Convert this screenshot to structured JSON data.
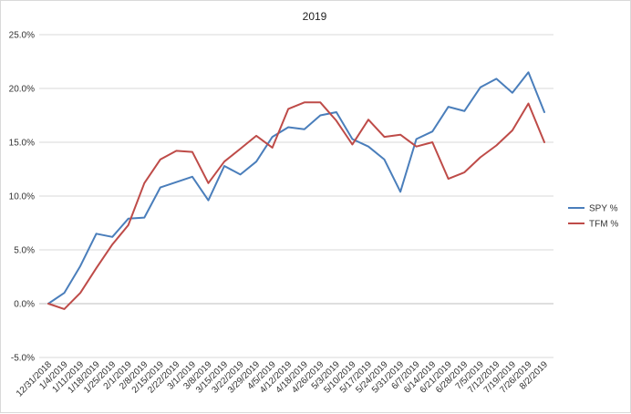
{
  "chart_data": {
    "type": "line",
    "title": "2019",
    "x": [
      "12/31/2018",
      "1/4/2019",
      "1/11/2019",
      "1/18/2019",
      "1/25/2019",
      "2/1/2019",
      "2/8/2019",
      "2/15/2019",
      "2/22/2019",
      "3/1/2019",
      "3/8/2019",
      "3/15/2019",
      "3/22/2019",
      "3/29/2019",
      "4/5/2019",
      "4/12/2019",
      "4/18/2019",
      "4/26/2019",
      "5/3/2019",
      "5/10/2019",
      "5/17/2019",
      "5/24/2019",
      "5/31/2019",
      "6/7/2019",
      "6/14/2019",
      "6/21/2019",
      "6/28/2019",
      "7/5/2019",
      "7/12/2019",
      "7/19/2019",
      "7/26/2019",
      "8/2/2019"
    ],
    "xlabels": [
      "12/31/2018",
      "1/4/2019",
      "1/11/2019",
      "1/18/2019",
      "1/25/2019",
      "2/1/2019",
      "2/8/2019",
      "2/15/2019",
      "2/22/2019",
      "3/1/2019",
      "3/8/2019",
      "3/15/2019",
      "3/22/2019",
      "3/29/2019",
      "4/5/2019",
      "4/12/2019",
      "4/18/2019",
      "4/26/2019",
      "5/3/2019",
      "5/10/2019",
      "5/17/2019",
      "5/24/2019",
      "5/31/2019",
      "6/7/2019",
      "6/14/2019",
      "6/21/2019",
      "6/28/2019",
      "7/5/2019",
      "7/12/2019",
      "7/19/2019",
      "7/26/2019",
      "8/2/2019"
    ],
    "ylim": [
      -5,
      25
    ],
    "yticks": [
      -5,
      0,
      5,
      10,
      15,
      20,
      25
    ],
    "ytick_labels": [
      "-5.0%",
      "0.0%",
      "5.0%",
      "10.0%",
      "15.0%",
      "20.0%",
      "25.0%"
    ],
    "grid": true,
    "legend_position": "right",
    "series": [
      {
        "name": "SPY %",
        "color": "#4a7ebb",
        "values": [
          0.0,
          1.0,
          3.5,
          6.5,
          6.2,
          7.9,
          8.0,
          10.8,
          11.3,
          11.8,
          9.6,
          12.8,
          12.0,
          13.2,
          15.5,
          16.4,
          16.2,
          17.5,
          17.8,
          15.3,
          14.6,
          13.4,
          10.4,
          15.3,
          16.0,
          18.3,
          17.9,
          20.1,
          20.9,
          19.6,
          21.5,
          17.8
        ]
      },
      {
        "name": "TFM %",
        "color": "#be4b48",
        "values": [
          0.0,
          -0.5,
          1.0,
          3.3,
          5.5,
          7.3,
          11.2,
          13.4,
          14.2,
          14.1,
          11.2,
          13.2,
          14.4,
          15.6,
          14.5,
          18.1,
          18.7,
          18.7,
          17.0,
          14.8,
          17.1,
          15.5,
          15.7,
          14.6,
          15.0,
          11.6,
          12.2,
          13.6,
          14.7,
          16.1,
          18.6,
          15.0
        ]
      }
    ]
  }
}
